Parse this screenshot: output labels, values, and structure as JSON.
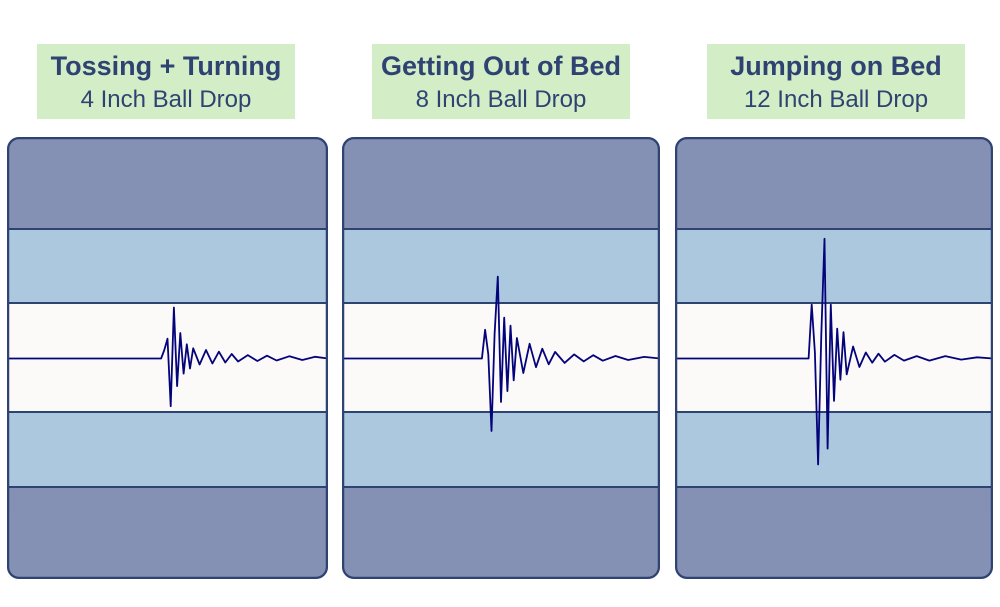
{
  "colors": {
    "label_bg": "#d3eec7",
    "label_text": "#2f4373",
    "outer_band": "#8591b4",
    "middle_band": "#abc8de",
    "center_band": "#fcf9f9",
    "border": "#2f4373",
    "waveform": "#04047a"
  },
  "chart_data": [
    {
      "type": "line",
      "title": "Tossing + Turning",
      "subtitle": "4 Inch Ball Drop",
      "ylim": [
        -1,
        1
      ],
      "grid": false,
      "series": [
        {
          "amplitude": 0.45,
          "x": [
            0,
            0.48,
            0.49,
            0.5,
            0.51,
            0.52,
            0.53,
            0.54,
            0.55,
            0.56,
            0.57,
            0.58,
            0.6,
            0.62,
            0.64,
            0.66,
            0.68,
            0.7,
            0.72,
            0.75,
            0.78,
            0.81,
            0.84,
            0.88,
            0.92,
            0.96,
            1
          ],
          "y": [
            0,
            0,
            0.15,
            0.35,
            -0.95,
            0.9,
            -0.55,
            0.45,
            -0.3,
            0.25,
            -0.2,
            0.18,
            -0.12,
            0.15,
            -0.1,
            0.12,
            -0.08,
            0.08,
            -0.06,
            0.06,
            -0.05,
            0.05,
            -0.04,
            0.04,
            -0.03,
            0.03,
            0
          ]
        }
      ]
    },
    {
      "type": "line",
      "title": "Getting Out of Bed",
      "subtitle": "8 Inch Ball Drop",
      "ylim": [
        -1,
        1
      ],
      "grid": false,
      "series": [
        {
          "amplitude": 0.65,
          "x": [
            0,
            0.44,
            0.45,
            0.46,
            0.47,
            0.48,
            0.49,
            0.5,
            0.51,
            0.52,
            0.53,
            0.54,
            0.55,
            0.57,
            0.59,
            0.61,
            0.63,
            0.65,
            0.67,
            0.7,
            0.73,
            0.76,
            0.79,
            0.82,
            0.86,
            0.9,
            0.95,
            1
          ],
          "y": [
            0,
            0,
            0.35,
            0.05,
            -1.0,
            0.3,
            1.0,
            -0.6,
            0.5,
            -0.45,
            0.4,
            -0.3,
            0.25,
            -0.2,
            0.18,
            -0.12,
            0.12,
            -0.08,
            0.08,
            -0.06,
            0.05,
            -0.04,
            0.04,
            -0.03,
            0.03,
            -0.02,
            0.02,
            0
          ]
        }
      ]
    },
    {
      "type": "line",
      "title": "Jumping on Bed",
      "subtitle": "12 Inch Ball Drop",
      "ylim": [
        -1,
        1
      ],
      "grid": false,
      "series": [
        {
          "amplitude": 0.95,
          "x": [
            0,
            0.42,
            0.43,
            0.44,
            0.45,
            0.46,
            0.47,
            0.48,
            0.49,
            0.5,
            0.51,
            0.52,
            0.53,
            0.54,
            0.56,
            0.58,
            0.6,
            0.62,
            0.64,
            0.66,
            0.69,
            0.72,
            0.76,
            0.8,
            0.85,
            0.9,
            0.95,
            1
          ],
          "y": [
            0,
            0,
            0.45,
            0.05,
            -1.0,
            0.2,
            1.0,
            -0.85,
            0.45,
            -0.4,
            0.25,
            -0.2,
            0.22,
            -0.15,
            0.1,
            -0.08,
            0.05,
            -0.04,
            0.04,
            -0.03,
            0.03,
            -0.02,
            0.02,
            -0.02,
            0.02,
            -0.01,
            0.01,
            0
          ]
        }
      ]
    }
  ]
}
